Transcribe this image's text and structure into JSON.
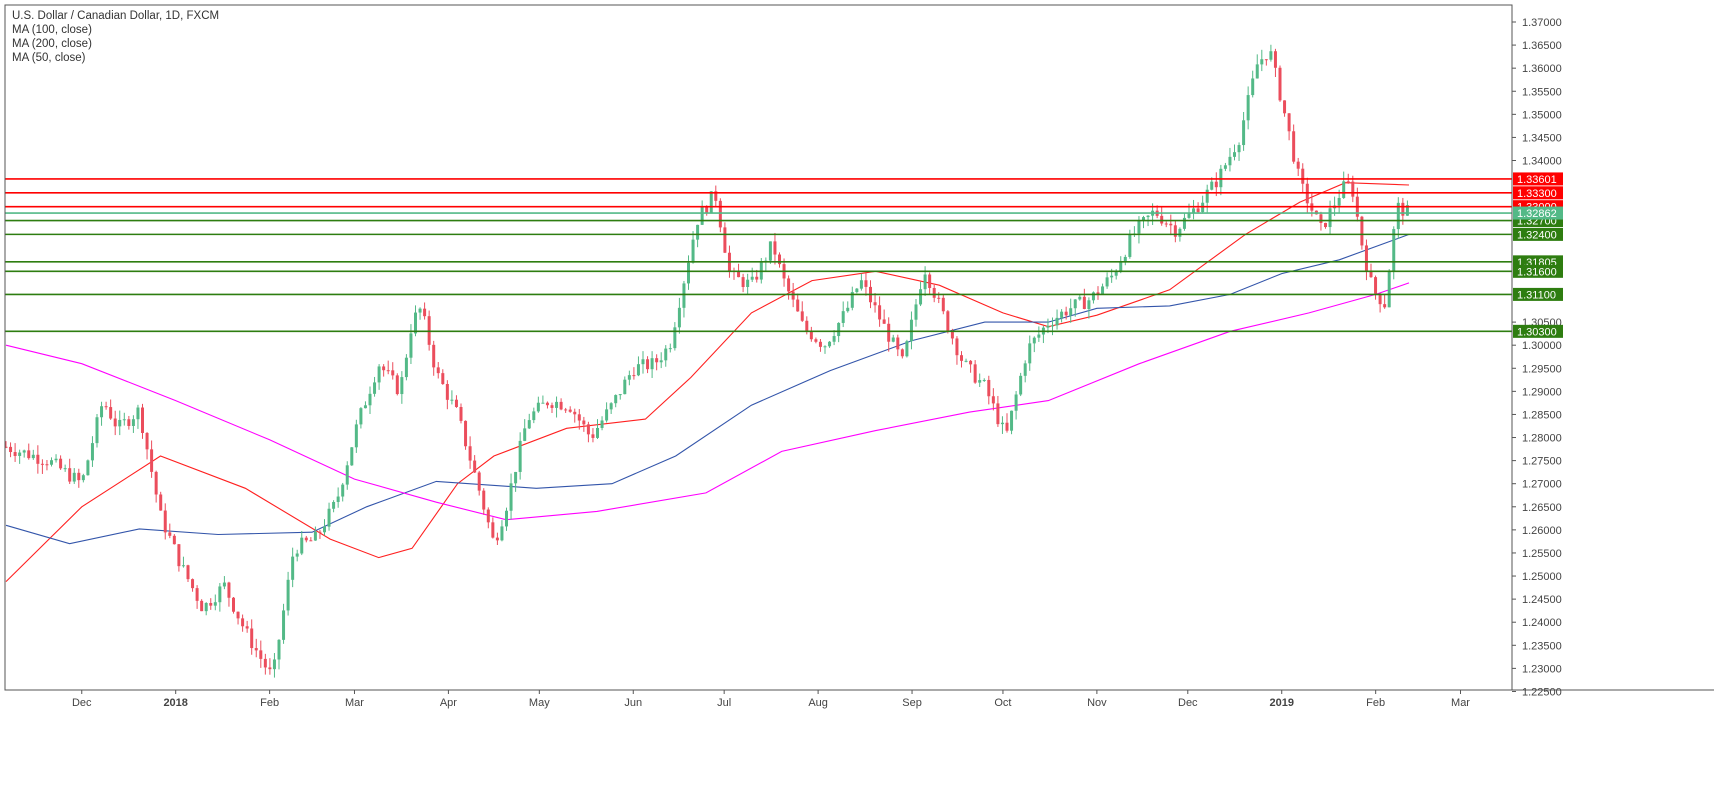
{
  "legend": {
    "title": "U.S. Dollar / Canadian Dollar, 1D, FXCM",
    "studies": [
      "MA (100, close)",
      "MA (200, close)",
      "MA (50, close)"
    ]
  },
  "colors": {
    "up": "#53b987",
    "down": "#eb4d5c",
    "resistance": "#ff0000",
    "support": "#2e7d10",
    "ma50": "#ff2020",
    "ma100": "#3355aa",
    "ma200": "#ff00ff",
    "last_price": "#53b987"
  },
  "chart_data": {
    "type": "candlestick",
    "symbol": "U.S. Dollar / Canadian Dollar",
    "timeframe": "1D",
    "source": "FXCM",
    "ylim": [
      1.2203,
      1.372
    ],
    "y_ticks": [
      "1.37000",
      "1.36500",
      "1.36000",
      "1.35500",
      "1.35000",
      "1.34500",
      "1.34000",
      "1.30500",
      "1.30000",
      "1.29500",
      "1.29000",
      "1.28500",
      "1.28000",
      "1.27500",
      "1.27000",
      "1.26500",
      "1.26000",
      "1.25500",
      "1.25000",
      "1.24500",
      "1.24000",
      "1.23500",
      "1.23000",
      "1.22500"
    ],
    "x_ticks": [
      "Dec",
      "2018",
      "Feb",
      "Mar",
      "Apr",
      "May",
      "Jun",
      "Jul",
      "Aug",
      "Sep",
      "Oct",
      "Nov",
      "Dec",
      "2019",
      "Feb",
      "Mar"
    ],
    "x_tick_dates": [
      "2017-12-01",
      "2018-01-01",
      "2018-02-01",
      "2018-03-01",
      "2018-04-01",
      "2018-05-01",
      "2018-06-01",
      "2018-07-01",
      "2018-08-01",
      "2018-09-01",
      "2018-10-01",
      "2018-11-01",
      "2018-12-01",
      "2019-01-01",
      "2019-02-01",
      "2019-03-01"
    ],
    "resistance_levels": [
      "1.33601",
      "1.33300",
      "1.33000"
    ],
    "support_levels": [
      "1.32700",
      "1.32400",
      "1.31805",
      "1.31600",
      "1.31100",
      "1.30300"
    ],
    "last_price": "1.32862",
    "close_path": [
      [
        "2017-11-06",
        1.278
      ],
      [
        "2017-11-20",
        1.275
      ],
      [
        "2017-12-01",
        1.27
      ],
      [
        "2017-12-08",
        1.288
      ],
      [
        "2017-12-13",
        1.282
      ],
      [
        "2017-12-20",
        1.286
      ],
      [
        "2017-12-27",
        1.263
      ],
      [
        "2018-01-03",
        1.252
      ],
      [
        "2018-01-10",
        1.243
      ],
      [
        "2018-01-17",
        1.248
      ],
      [
        "2018-01-24",
        1.238
      ],
      [
        "2018-01-31",
        1.23
      ],
      [
        "2018-02-02",
        1.228
      ],
      [
        "2018-02-09",
        1.256
      ],
      [
        "2018-02-16",
        1.258
      ],
      [
        "2018-02-23",
        1.266
      ],
      [
        "2018-03-02",
        1.283
      ],
      [
        "2018-03-09",
        1.296
      ],
      [
        "2018-03-16",
        1.29
      ],
      [
        "2018-03-20",
        1.305
      ],
      [
        "2018-03-23",
        1.308
      ],
      [
        "2018-03-28",
        1.294
      ],
      [
        "2018-04-04",
        1.285
      ],
      [
        "2018-04-11",
        1.269
      ],
      [
        "2018-04-16",
        1.257
      ],
      [
        "2018-04-20",
        1.265
      ],
      [
        "2018-04-27",
        1.284
      ],
      [
        "2018-05-04",
        1.288
      ],
      [
        "2018-05-11",
        1.287
      ],
      [
        "2018-05-18",
        1.28
      ],
      [
        "2018-05-25",
        1.287
      ],
      [
        "2018-06-01",
        1.295
      ],
      [
        "2018-06-08",
        1.296
      ],
      [
        "2018-06-13",
        1.3
      ],
      [
        "2018-06-18",
        1.315
      ],
      [
        "2018-06-22",
        1.327
      ],
      [
        "2018-06-28",
        1.333
      ],
      [
        "2018-07-03",
        1.315
      ],
      [
        "2018-07-10",
        1.313
      ],
      [
        "2018-07-17",
        1.322
      ],
      [
        "2018-07-20",
        1.315
      ],
      [
        "2018-07-27",
        1.304
      ],
      [
        "2018-08-03",
        1.3
      ],
      [
        "2018-08-10",
        1.307
      ],
      [
        "2018-08-15",
        1.314
      ],
      [
        "2018-08-22",
        1.305
      ],
      [
        "2018-08-29",
        1.296
      ],
      [
        "2018-09-05",
        1.317
      ],
      [
        "2018-09-11",
        1.307
      ],
      [
        "2018-09-18",
        1.296
      ],
      [
        "2018-09-25",
        1.291
      ],
      [
        "2018-10-02",
        1.28
      ],
      [
        "2018-10-09",
        1.299
      ],
      [
        "2018-10-16",
        1.305
      ],
      [
        "2018-10-23",
        1.308
      ],
      [
        "2018-10-30",
        1.31
      ],
      [
        "2018-11-06",
        1.315
      ],
      [
        "2018-11-13",
        1.324
      ],
      [
        "2018-11-20",
        1.329
      ],
      [
        "2018-11-27",
        1.325
      ],
      [
        "2018-12-04",
        1.33
      ],
      [
        "2018-12-11",
        1.336
      ],
      [
        "2018-12-18",
        1.345
      ],
      [
        "2018-12-24",
        1.361
      ],
      [
        "2018-12-28",
        1.364
      ],
      [
        "2019-01-02",
        1.35
      ],
      [
        "2019-01-07",
        1.335
      ],
      [
        "2019-01-14",
        1.325
      ],
      [
        "2019-01-21",
        1.334
      ],
      [
        "2019-01-24",
        1.335
      ],
      [
        "2019-01-28",
        1.32
      ],
      [
        "2019-01-31",
        1.312
      ],
      [
        "2019-02-04",
        1.309
      ],
      [
        "2019-02-08",
        1.33
      ],
      [
        "2019-02-12",
        1.3286
      ]
    ],
    "series": [
      {
        "name": "MA (50, close)",
        "points": [
          [
            "2017-11-06",
            1.2488
          ],
          [
            "2017-12-01",
            1.265
          ],
          [
            "2017-12-27",
            1.276
          ],
          [
            "2018-01-24",
            1.269
          ],
          [
            "2018-02-21",
            1.258
          ],
          [
            "2018-03-09",
            1.254
          ],
          [
            "2018-03-20",
            1.256
          ],
          [
            "2018-04-04",
            1.27
          ],
          [
            "2018-04-16",
            1.276
          ],
          [
            "2018-05-10",
            1.282
          ],
          [
            "2018-06-05",
            1.284
          ],
          [
            "2018-06-20",
            1.293
          ],
          [
            "2018-07-10",
            1.307
          ],
          [
            "2018-07-30",
            1.314
          ],
          [
            "2018-08-20",
            1.316
          ],
          [
            "2018-09-10",
            1.313
          ],
          [
            "2018-10-01",
            1.307
          ],
          [
            "2018-10-16",
            1.304
          ],
          [
            "2018-11-01",
            1.3065
          ],
          [
            "2018-11-25",
            1.312
          ],
          [
            "2018-12-20",
            1.324
          ],
          [
            "2019-01-07",
            1.331
          ],
          [
            "2019-01-22",
            1.3352
          ],
          [
            "2019-02-12",
            1.3347
          ]
        ]
      },
      {
        "name": "MA (100, close)",
        "points": [
          [
            "2017-11-06",
            1.261
          ],
          [
            "2017-11-27",
            1.257
          ],
          [
            "2017-12-20",
            1.2602
          ],
          [
            "2018-01-15",
            1.259
          ],
          [
            "2018-02-15",
            1.2595
          ],
          [
            "2018-03-05",
            1.265
          ],
          [
            "2018-03-28",
            1.2705
          ],
          [
            "2018-04-30",
            1.269
          ],
          [
            "2018-05-25",
            1.27
          ],
          [
            "2018-06-15",
            1.276
          ],
          [
            "2018-07-10",
            1.287
          ],
          [
            "2018-08-05",
            1.2945
          ],
          [
            "2018-09-01",
            1.301
          ],
          [
            "2018-09-25",
            1.305
          ],
          [
            "2018-10-16",
            1.305
          ],
          [
            "2018-11-01",
            1.308
          ],
          [
            "2018-11-25",
            1.3085
          ],
          [
            "2018-12-15",
            1.311
          ],
          [
            "2019-01-01",
            1.3155
          ],
          [
            "2019-01-20",
            1.3185
          ],
          [
            "2019-02-12",
            1.324
          ]
        ]
      },
      {
        "name": "MA (200, close)",
        "points": [
          [
            "2017-11-06",
            1.3
          ],
          [
            "2017-12-01",
            1.296
          ],
          [
            "2018-01-01",
            1.288
          ],
          [
            "2018-02-01",
            1.2795
          ],
          [
            "2018-03-01",
            1.271
          ],
          [
            "2018-03-28",
            1.266
          ],
          [
            "2018-04-20",
            1.2622
          ],
          [
            "2018-05-20",
            1.264
          ],
          [
            "2018-06-25",
            1.268
          ],
          [
            "2018-07-20",
            1.277
          ],
          [
            "2018-08-20",
            1.2815
          ],
          [
            "2018-09-20",
            1.2855
          ],
          [
            "2018-10-16",
            1.288
          ],
          [
            "2018-11-15",
            1.296
          ],
          [
            "2018-12-15",
            1.303
          ],
          [
            "2019-01-10",
            1.307
          ],
          [
            "2019-02-01",
            1.311
          ],
          [
            "2019-02-12",
            1.3135
          ]
        ]
      }
    ]
  }
}
